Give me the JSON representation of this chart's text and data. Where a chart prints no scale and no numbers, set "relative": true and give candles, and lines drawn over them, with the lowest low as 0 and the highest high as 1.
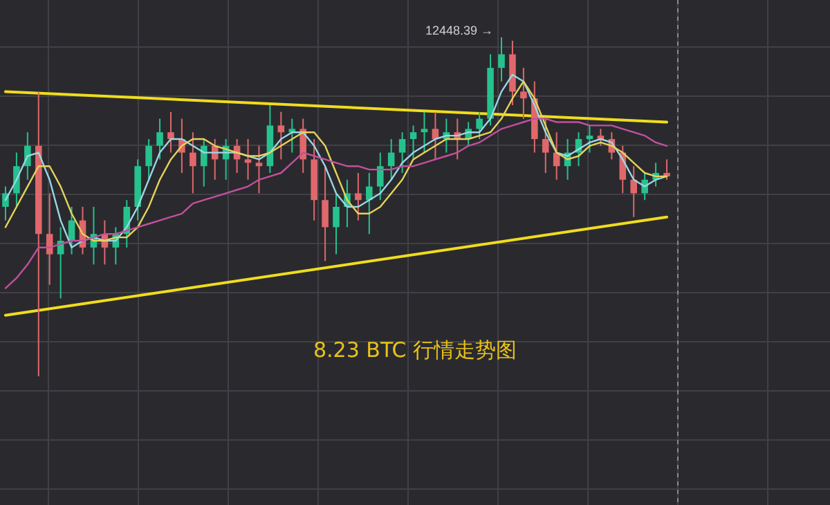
{
  "chart_data": {
    "type": "candlestick",
    "title": "8.23  BTC  行情走势图",
    "relative": true,
    "grid": true,
    "annotations": [
      "12448.39 →"
    ],
    "categories": [
      null,
      null,
      null,
      null,
      null,
      null,
      null,
      null,
      null,
      null,
      null,
      null,
      null,
      null,
      null,
      null,
      null,
      null,
      null,
      null,
      null,
      null,
      null,
      null,
      null,
      null,
      null,
      null,
      null,
      null,
      null,
      null,
      null,
      null,
      null,
      null,
      null,
      null,
      null,
      null,
      null,
      null,
      null,
      null,
      null,
      null,
      null,
      null,
      null,
      null,
      null,
      null,
      null,
      null,
      null,
      null,
      null,
      null,
      null,
      null,
      null
    ],
    "ohlc": [
      [
        0.5,
        0.56,
        0.46,
        0.54
      ],
      [
        0.54,
        0.66,
        0.5,
        0.62
      ],
      [
        0.62,
        0.72,
        0.58,
        0.68
      ],
      [
        0.68,
        0.84,
        0,
        0.42
      ],
      [
        0.42,
        0.54,
        0.27,
        0.36
      ],
      [
        0.36,
        0.44,
        0.23,
        0.4
      ],
      [
        0.4,
        0.5,
        0.36,
        0.46
      ],
      [
        0.46,
        0.5,
        0.36,
        0.38
      ],
      [
        0.38,
        0.5,
        0.33,
        0.42
      ],
      [
        0.42,
        0.46,
        0.33,
        0.38
      ],
      [
        0.38,
        0.44,
        0.33,
        0.42
      ],
      [
        0.42,
        0.52,
        0.38,
        0.5
      ],
      [
        0.5,
        0.64,
        0.46,
        0.62
      ],
      [
        0.62,
        0.7,
        0.58,
        0.68
      ],
      [
        0.68,
        0.76,
        0.64,
        0.72
      ],
      [
        0.72,
        0.78,
        0.66,
        0.7
      ],
      [
        0.7,
        0.76,
        0.6,
        0.66
      ],
      [
        0.66,
        0.72,
        0.54,
        0.62
      ],
      [
        0.62,
        0.7,
        0.56,
        0.68
      ],
      [
        0.68,
        0.7,
        0.58,
        0.64
      ],
      [
        0.64,
        0.7,
        0.58,
        0.68
      ],
      [
        0.68,
        0.7,
        0.6,
        0.64
      ],
      [
        0.64,
        0.7,
        0.58,
        0.63
      ],
      [
        0.63,
        0.68,
        0.54,
        0.62
      ],
      [
        0.62,
        0.8,
        0.6,
        0.74
      ],
      [
        0.74,
        0.78,
        0.64,
        0.72
      ],
      [
        0.72,
        0.76,
        0.66,
        0.73
      ],
      [
        0.73,
        0.76,
        0.6,
        0.64
      ],
      [
        0.64,
        0.7,
        0.46,
        0.52
      ],
      [
        0.52,
        0.62,
        0.34,
        0.44
      ],
      [
        0.44,
        0.54,
        0.36,
        0.5
      ],
      [
        0.5,
        0.58,
        0.44,
        0.54
      ],
      [
        0.54,
        0.6,
        0.46,
        0.52
      ],
      [
        0.52,
        0.6,
        0.42,
        0.56
      ],
      [
        0.56,
        0.66,
        0.52,
        0.62
      ],
      [
        0.62,
        0.7,
        0.58,
        0.66
      ],
      [
        0.66,
        0.72,
        0.6,
        0.7
      ],
      [
        0.7,
        0.74,
        0.64,
        0.72
      ],
      [
        0.72,
        0.78,
        0.66,
        0.73
      ],
      [
        0.73,
        0.78,
        0.64,
        0.7
      ],
      [
        0.7,
        0.76,
        0.66,
        0.72
      ],
      [
        0.72,
        0.76,
        0.64,
        0.7
      ],
      [
        0.7,
        0.75,
        0.68,
        0.73
      ],
      [
        0.73,
        0.78,
        0.7,
        0.76
      ],
      [
        0.76,
        0.95,
        0.74,
        0.91
      ],
      [
        0.91,
        1.0,
        0.87,
        0.95
      ],
      [
        0.95,
        0.99,
        0.8,
        0.84
      ],
      [
        0.84,
        0.91,
        0.76,
        0.82
      ],
      [
        0.82,
        0.87,
        0.66,
        0.7
      ],
      [
        0.7,
        0.76,
        0.6,
        0.66
      ],
      [
        0.66,
        0.72,
        0.58,
        0.62
      ],
      [
        0.62,
        0.7,
        0.58,
        0.66
      ],
      [
        0.66,
        0.72,
        0.62,
        0.7
      ],
      [
        0.7,
        0.74,
        0.66,
        0.71
      ],
      [
        0.71,
        0.73,
        0.68,
        0.7
      ],
      [
        0.7,
        0.72,
        0.64,
        0.66
      ],
      [
        0.66,
        0.68,
        0.54,
        0.58
      ],
      [
        0.58,
        0.62,
        0.47,
        0.54
      ],
      [
        0.54,
        0.6,
        0.52,
        0.58
      ],
      [
        0.58,
        0.63,
        0.56,
        0.6
      ],
      [
        0.6,
        0.64,
        0.58,
        0.59
      ]
    ],
    "colors": [
      "#26c28e",
      "#26c28e",
      "#26c28e",
      "#e0686b",
      "#e0686b",
      "#26c28e",
      "#26c28e",
      "#e0686b",
      "#26c28e",
      "#e0686b",
      "#26c28e",
      "#26c28e",
      "#26c28e",
      "#26c28e",
      "#26c28e",
      "#e0686b",
      "#e0686b",
      "#e0686b",
      "#26c28e",
      "#e0686b",
      "#26c28e",
      "#e0686b",
      "#e0686b",
      "#e0686b",
      "#26c28e",
      "#e0686b",
      "#26c28e",
      "#e0686b",
      "#e0686b",
      "#e0686b",
      "#26c28e",
      "#26c28e",
      "#e0686b",
      "#26c28e",
      "#26c28e",
      "#26c28e",
      "#26c28e",
      "#26c28e",
      "#26c28e",
      "#e0686b",
      "#26c28e",
      "#e0686b",
      "#26c28e",
      "#26c28e",
      "#26c28e",
      "#26c28e",
      "#e0686b",
      "#e0686b",
      "#e0686b",
      "#e0686b",
      "#e0686b",
      "#26c28e",
      "#26c28e",
      "#26c28e",
      "#e0686b",
      "#e0686b",
      "#e0686b",
      "#e0686b",
      "#26c28e",
      "#26c28e",
      "#e0686b"
    ],
    "series": [
      {
        "type": "line",
        "color": "#9ad7e6",
        "values": [
          0.52,
          0.58,
          0.65,
          0.66,
          0.58,
          0.46,
          0.38,
          0.4,
          0.41,
          0.4,
          0.4,
          0.44,
          0.5,
          0.58,
          0.66,
          0.7,
          0.7,
          0.68,
          0.66,
          0.66,
          0.66,
          0.66,
          0.65,
          0.64,
          0.66,
          0.7,
          0.72,
          0.72,
          0.68,
          0.62,
          0.54,
          0.5,
          0.5,
          0.52,
          0.54,
          0.58,
          0.63,
          0.66,
          0.68,
          0.7,
          0.71,
          0.71,
          0.72,
          0.72,
          0.76,
          0.84,
          0.89,
          0.87,
          0.8,
          0.72,
          0.66,
          0.65,
          0.67,
          0.69,
          0.7,
          0.69,
          0.64,
          0.58,
          0.56,
          0.58,
          0.59
        ]
      },
      {
        "type": "line",
        "color": "#e6d35a",
        "values": [
          0.44,
          0.5,
          0.56,
          0.62,
          0.62,
          0.56,
          0.48,
          0.42,
          0.4,
          0.4,
          0.41,
          0.41,
          0.44,
          0.5,
          0.58,
          0.64,
          0.68,
          0.7,
          0.7,
          0.68,
          0.67,
          0.66,
          0.65,
          0.65,
          0.66,
          0.68,
          0.7,
          0.72,
          0.72,
          0.68,
          0.6,
          0.52,
          0.48,
          0.48,
          0.5,
          0.54,
          0.58,
          0.64,
          0.66,
          0.68,
          0.7,
          0.7,
          0.7,
          0.71,
          0.72,
          0.76,
          0.82,
          0.87,
          0.82,
          0.74,
          0.66,
          0.64,
          0.65,
          0.68,
          0.69,
          0.68,
          0.66,
          0.63,
          0.6,
          0.59,
          0.59
        ]
      },
      {
        "type": "line",
        "color": "#c2509e",
        "values": [
          0.26,
          0.29,
          0.33,
          0.38,
          0.38,
          0.39,
          0.4,
          0.4,
          0.41,
          0.42,
          0.42,
          0.43,
          0.44,
          0.45,
          0.46,
          0.47,
          0.48,
          0.51,
          0.52,
          0.53,
          0.54,
          0.55,
          0.56,
          0.58,
          0.59,
          0.6,
          0.63,
          0.66,
          0.65,
          0.64,
          0.63,
          0.62,
          0.62,
          0.61,
          0.61,
          0.61,
          0.62,
          0.62,
          0.63,
          0.64,
          0.65,
          0.66,
          0.68,
          0.69,
          0.71,
          0.73,
          0.74,
          0.75,
          0.76,
          0.76,
          0.75,
          0.75,
          0.75,
          0.74,
          0.74,
          0.74,
          0.73,
          0.72,
          0.71,
          0.69,
          0.68
        ]
      },
      {
        "type": "line",
        "color": "#f0dc1e",
        "values": [
          0.84,
          null,
          null,
          null,
          null,
          null,
          null,
          null,
          null,
          null,
          null,
          null,
          null,
          null,
          null,
          null,
          null,
          null,
          null,
          null,
          null,
          null,
          null,
          null,
          null,
          null,
          null,
          null,
          null,
          null,
          null,
          null,
          null,
          null,
          null,
          null,
          null,
          null,
          null,
          null,
          null,
          null,
          null,
          null,
          null,
          null,
          null,
          null,
          null,
          null,
          null,
          null,
          null,
          null,
          null,
          null,
          null,
          null,
          null,
          null,
          0.75
        ]
      },
      {
        "type": "line",
        "color": "#f0dc1e",
        "values": [
          0.18,
          null,
          null,
          null,
          null,
          null,
          null,
          null,
          null,
          null,
          null,
          null,
          null,
          null,
          null,
          null,
          null,
          null,
          null,
          null,
          null,
          null,
          null,
          null,
          null,
          null,
          null,
          null,
          null,
          null,
          null,
          null,
          null,
          null,
          null,
          null,
          null,
          null,
          null,
          null,
          null,
          null,
          null,
          null,
          null,
          null,
          null,
          null,
          null,
          null,
          null,
          null,
          null,
          null,
          null,
          null,
          null,
          null,
          null,
          null,
          0.47
        ]
      }
    ]
  }
}
